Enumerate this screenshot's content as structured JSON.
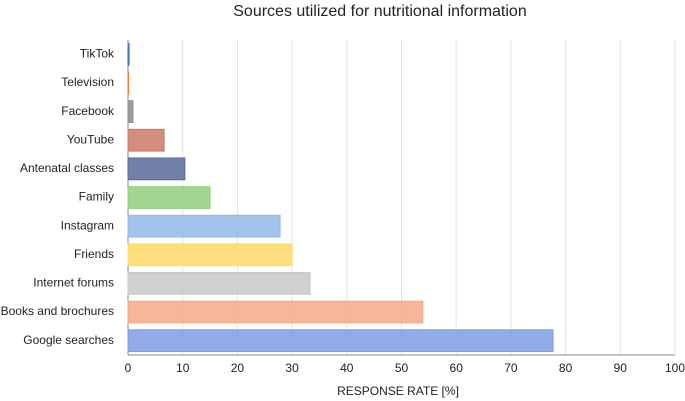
{
  "chart_data": {
    "type": "bar",
    "orientation": "horizontal",
    "title": "Sources utilized for nutritional information",
    "x_label": "RESPONSE RATE [%]",
    "categories": [
      "TikTok",
      "Television",
      "Facebook",
      "YouTube",
      "Antenatal classes",
      "Family",
      "Instagram",
      "Friends",
      "Internet forums",
      "Books and brochures",
      "Google searches"
    ],
    "values": [
      0.2,
      0.1,
      0.9,
      6.6,
      10.4,
      15,
      27.8,
      30,
      33.3,
      53.9,
      77.7
    ],
    "colors": [
      "#4472c4",
      "#ed7d31",
      "#8c8c8c",
      "#c97a68",
      "#5b6a99",
      "#93cc7f",
      "#93b8e6",
      "#ffd966",
      "#c8c8c8",
      "#f4a98a",
      "#7f9be2"
    ],
    "xlim": [
      0,
      100
    ],
    "xticks": [
      0,
      10,
      20,
      30,
      40,
      50,
      60,
      70,
      80,
      90,
      100
    ],
    "grid": true
  }
}
